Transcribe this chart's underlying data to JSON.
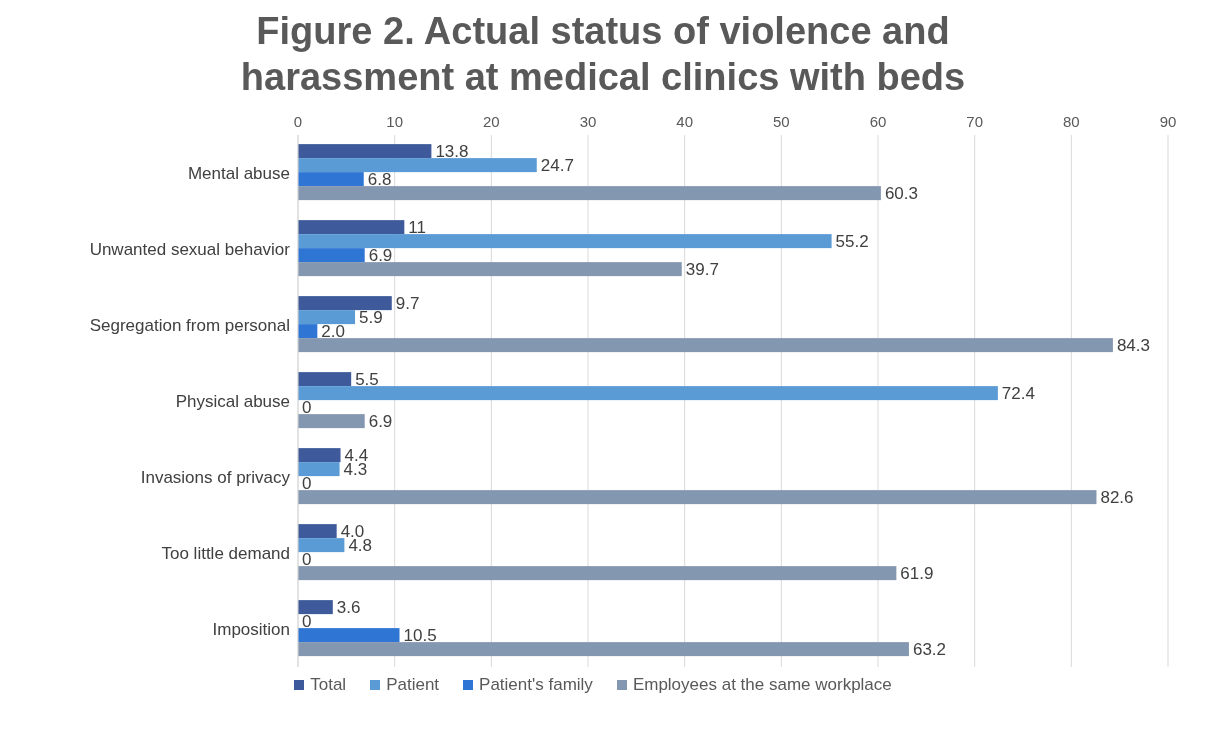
{
  "chart_data": {
    "type": "bar",
    "orientation": "horizontal",
    "title": "Figure 2. Actual status of violence and harassment at medical clinics with beds",
    "categories": [
      "Mental abuse",
      "Unwanted sexual behavior",
      "Segregation from personal",
      "Physical abuse",
      "Invasions of privacy",
      "Too little demand",
      "Imposition"
    ],
    "series": [
      {
        "name": "Total",
        "color": "#3f5a9a",
        "values": [
          13.8,
          11,
          9.7,
          5.5,
          4.4,
          4.0,
          3.6
        ],
        "value_labels": [
          "13.8",
          "11",
          "9.7",
          "5.5",
          "4.4",
          "4.0",
          "3.6"
        ]
      },
      {
        "name": "Patient",
        "color": "#5b9bd5",
        "values": [
          24.7,
          55.2,
          5.9,
          72.4,
          4.3,
          4.8,
          0
        ],
        "value_labels": [
          "24.7",
          "55.2",
          "5.9",
          "72.4",
          "4.3",
          "4.8",
          "0"
        ]
      },
      {
        "name": "Patient's family",
        "color": "#2e75d4",
        "values": [
          6.8,
          6.9,
          2.0,
          0,
          0,
          0,
          10.5
        ],
        "value_labels": [
          "6.8",
          "6.9",
          "2.0",
          "0",
          "0",
          "0",
          "10.5"
        ]
      },
      {
        "name": "Employees at the same workplace",
        "color": "#8497b0",
        "values": [
          60.3,
          39.7,
          84.3,
          6.9,
          82.6,
          61.9,
          63.2
        ],
        "value_labels": [
          "60.3",
          "39.7",
          "84.3",
          "6.9",
          "82.6",
          "61.9",
          "63.2"
        ]
      }
    ],
    "xlim": [
      0,
      90
    ],
    "xticks": [
      0,
      10,
      20,
      30,
      40,
      50,
      60,
      70,
      80,
      90
    ],
    "grid": "x",
    "legend": "bottom"
  }
}
